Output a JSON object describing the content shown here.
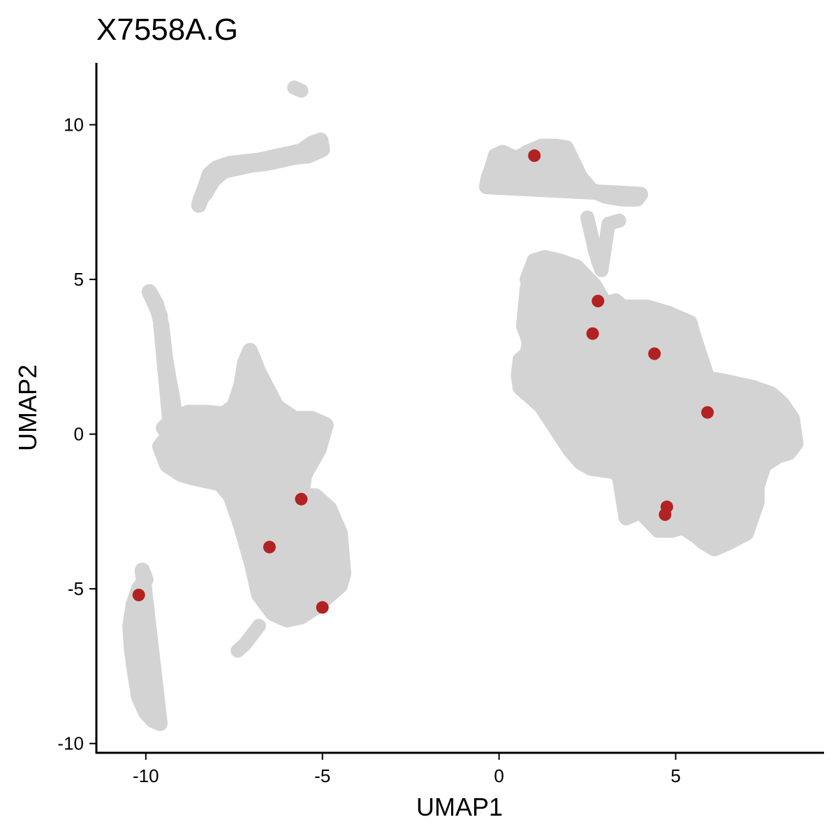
{
  "chart_data": {
    "type": "scatter",
    "title": "X7558A.G",
    "xlabel": "UMAP1",
    "ylabel": "UMAP2",
    "xlim": [
      -11.4,
      9.2
    ],
    "ylim": [
      -10.3,
      12.0
    ],
    "x_ticks": [
      -10,
      -5,
      0,
      5
    ],
    "x_tick_labels": [
      "-10",
      "-5",
      "0",
      "5"
    ],
    "y_ticks": [
      -10,
      -5,
      0,
      5,
      10
    ],
    "y_tick_labels": [
      "-10",
      "-5",
      "0",
      "5",
      "10"
    ],
    "grid": false,
    "legend": "none",
    "background_color": "#d3d3d3",
    "highlight_color": "#b22222",
    "highlighted_points": [
      {
        "x": 1.0,
        "y": 9.0
      },
      {
        "x": 2.8,
        "y": 4.3
      },
      {
        "x": 2.65,
        "y": 3.25
      },
      {
        "x": 4.4,
        "y": 2.6
      },
      {
        "x": 5.9,
        "y": 0.7
      },
      {
        "x": 4.75,
        "y": -2.35
      },
      {
        "x": 4.7,
        "y": -2.6
      },
      {
        "x": -5.6,
        "y": -2.1
      },
      {
        "x": -6.5,
        "y": -3.65
      },
      {
        "x": -5.0,
        "y": -5.6
      },
      {
        "x": -10.2,
        "y": -5.2
      }
    ],
    "background_clusters": [
      {
        "x": [
          -5.7,
          -5.8,
          -5.6
        ],
        "y": [
          11.15,
          11.2,
          11.1
        ]
      },
      {
        "x": [
          -8.5,
          -8.35,
          -8.2,
          -8.0,
          -7.6,
          -7.2,
          -6.8,
          -6.4,
          -6.0,
          -5.6,
          -5.3,
          -5.05,
          -5.0,
          -5.2,
          -5.4,
          -5.8,
          -6.2,
          -6.6,
          -7.0,
          -7.4,
          -7.8,
          -8.1,
          -8.3,
          -8.45
        ],
        "y": [
          7.4,
          7.9,
          8.4,
          8.6,
          8.75,
          8.8,
          8.85,
          8.95,
          9.05,
          9.15,
          9.4,
          9.5,
          9.2,
          9.1,
          9.0,
          8.95,
          8.85,
          8.75,
          8.7,
          8.6,
          8.5,
          8.2,
          7.8,
          7.6
        ]
      },
      {
        "x": [
          -9.9,
          -9.7,
          -9.55,
          -9.45,
          -9.35,
          -9.25,
          -9.2,
          -9.3,
          -9.6
        ],
        "y": [
          4.6,
          4.2,
          3.5,
          2.5,
          1.8,
          1.2,
          0.8,
          0.2,
          3.85
        ]
      },
      {
        "x": [
          -9.5,
          -9.2,
          -8.8,
          -8.3,
          -7.8,
          -7.5,
          -7.3,
          -7.2,
          -7.05,
          -6.8,
          -6.3,
          -5.8,
          -5.3,
          -4.9,
          -5.1,
          -5.5,
          -5.6,
          -5.2,
          -4.8,
          -4.5,
          -4.4,
          -4.5,
          -4.9,
          -5.2,
          -5.6,
          -6.0,
          -6.4,
          -6.8,
          -7.0,
          -7.3,
          -7.6,
          -7.9,
          -8.3,
          -8.7,
          -9.0,
          -9.4,
          -9.6,
          -9.4,
          -9.0
        ],
        "y": [
          0.2,
          0.5,
          0.7,
          0.7,
          0.65,
          0.9,
          1.6,
          2.3,
          2.7,
          2.0,
          0.9,
          0.5,
          0.5,
          0.3,
          -0.5,
          -1.3,
          -2.0,
          -2.0,
          -2.4,
          -3.2,
          -4.5,
          -4.9,
          -5.3,
          -5.6,
          -5.9,
          -6.0,
          -5.8,
          -5.2,
          -4.2,
          -3.0,
          -2.0,
          -1.6,
          -1.5,
          -1.4,
          -1.3,
          -1.0,
          -0.4,
          -0.1,
          -0.5
        ]
      },
      {
        "x": [
          -7.4,
          -7.2,
          -7.0,
          -6.8
        ],
        "y": [
          -7.0,
          -6.8,
          -6.5,
          -6.2
        ]
      },
      {
        "x": [
          -10.1,
          -10.0,
          -10.2,
          -10.35,
          -10.45,
          -10.4,
          -10.3,
          -10.2,
          -10.0,
          -9.8,
          -9.6
        ],
        "y": [
          -4.4,
          -4.7,
          -5.0,
          -5.5,
          -6.2,
          -7.0,
          -7.8,
          -8.5,
          -9.0,
          -9.25,
          -9.35
        ]
      },
      {
        "x": [
          -0.35,
          -0.3,
          -0.2,
          -0.1,
          0.1,
          0.3,
          0.5,
          0.8,
          1.2,
          1.6,
          1.9,
          2.05,
          2.3,
          2.6,
          3.0,
          3.5,
          3.9,
          4.0
        ],
        "y": [
          8.0,
          8.3,
          8.6,
          9.0,
          9.1,
          9.0,
          8.9,
          9.1,
          9.3,
          9.3,
          9.25,
          8.9,
          8.3,
          7.9,
          7.7,
          7.6,
          7.6,
          7.75
        ]
      },
      {
        "x": [
          2.5,
          2.6,
          2.7,
          2.8,
          2.9,
          3.1,
          3.4
        ],
        "y": [
          7.0,
          6.5,
          6.0,
          5.6,
          5.3,
          6.8,
          6.9
        ]
      },
      {
        "x": [
          0.8,
          1.0,
          1.3,
          1.7,
          2.2,
          2.7,
          3.0,
          3.3,
          3.5,
          4.2,
          4.8,
          5.4,
          5.5,
          5.9,
          6.4,
          6.8,
          7.2,
          7.7,
          8.0,
          8.3,
          8.4,
          8.2,
          7.9,
          7.5,
          7.3,
          7.3,
          7.0,
          6.5,
          6.1,
          5.8,
          5.6,
          5.2,
          4.9,
          4.5,
          4.0,
          3.6,
          3.4,
          3.2,
          2.6,
          2.3,
          2.0,
          1.6,
          1.2,
          0.9,
          0.6,
          0.55,
          0.6,
          0.8,
          0.9,
          1.0,
          0.9,
          0.8,
          0.7,
          1.6,
          1.7,
          2.0
        ],
        "y": [
          5.0,
          5.6,
          5.7,
          5.6,
          5.4,
          4.8,
          4.2,
          4.3,
          4.1,
          4.1,
          3.9,
          3.6,
          3.2,
          1.8,
          1.7,
          1.6,
          1.5,
          1.3,
          1.0,
          0.5,
          -0.3,
          -0.6,
          -0.7,
          -1.0,
          -1.7,
          -2.2,
          -3.2,
          -3.5,
          -3.7,
          -3.5,
          -3.3,
          -3.0,
          -3.1,
          -3.1,
          -2.5,
          -2.7,
          -1.3,
          -1.2,
          -1.1,
          -0.9,
          -0.5,
          0.2,
          0.9,
          1.2,
          1.5,
          1.9,
          2.4,
          2.6,
          3.2,
          3.7,
          4.3,
          4.7,
          3.5,
          0.6,
          0.6,
          0.0
        ]
      }
    ]
  }
}
